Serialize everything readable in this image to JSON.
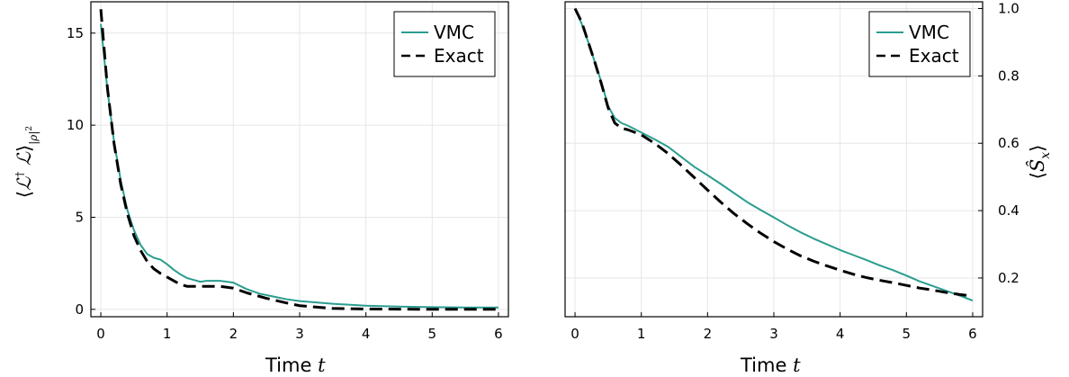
{
  "chart_data": [
    {
      "type": "line",
      "title": "",
      "xlabel": "Time t",
      "ylabel": "⟨ℒ† ℒ⟩|ρ|²",
      "xlim": [
        -0.15,
        6.15
      ],
      "ylim": [
        -0.4,
        16.7
      ],
      "xticks": [
        0,
        1,
        2,
        3,
        4,
        5,
        6
      ],
      "yticks": [
        0,
        5,
        10,
        15
      ],
      "ytick_labels": [
        "0",
        "5",
        "10",
        "15"
      ],
      "grid": true,
      "legend_position": "top-right",
      "series": [
        {
          "name": "VMC",
          "color": "#2a9d8f",
          "dash": "solid",
          "x": [
            0,
            0.1,
            0.2,
            0.3,
            0.4,
            0.5,
            0.6,
            0.7,
            0.8,
            0.9,
            1.0,
            1.1,
            1.2,
            1.3,
            1.4,
            1.5,
            1.6,
            1.8,
            2.0,
            2.2,
            2.4,
            2.6,
            2.8,
            3.0,
            3.5,
            4.0,
            4.5,
            5.0,
            5.5,
            6.0
          ],
          "y": [
            15.5,
            11.9,
            9.1,
            7.0,
            5.4,
            4.3,
            3.5,
            3.0,
            2.8,
            2.7,
            2.45,
            2.15,
            1.9,
            1.7,
            1.6,
            1.5,
            1.55,
            1.55,
            1.45,
            1.1,
            0.85,
            0.7,
            0.55,
            0.45,
            0.3,
            0.2,
            0.15,
            0.12,
            0.1,
            0.1
          ]
        },
        {
          "name": "Exact",
          "color": "#000000",
          "dash": "dashed",
          "x": [
            0,
            0.1,
            0.2,
            0.3,
            0.4,
            0.5,
            0.6,
            0.7,
            0.8,
            0.9,
            1.0,
            1.1,
            1.2,
            1.3,
            1.4,
            1.6,
            1.8,
            2.0,
            2.2,
            2.5,
            2.8,
            3.0,
            3.5,
            4.0,
            4.5,
            5.0,
            5.5,
            6.0
          ],
          "y": [
            16.3,
            12.0,
            9.0,
            6.8,
            5.2,
            4.0,
            3.2,
            2.6,
            2.2,
            1.95,
            1.75,
            1.55,
            1.35,
            1.25,
            1.25,
            1.25,
            1.25,
            1.15,
            0.9,
            0.6,
            0.35,
            0.2,
            0.05,
            0.02,
            0.01,
            0.0,
            0.0,
            0.0
          ]
        }
      ]
    },
    {
      "type": "line",
      "title": "",
      "xlabel": "Time t",
      "ylabel": "⟨Ŝx⟩",
      "xlim": [
        -0.15,
        6.15
      ],
      "ylim": [
        0.085,
        1.02
      ],
      "xticks": [
        0,
        1,
        2,
        3,
        4,
        5,
        6
      ],
      "yticks": [
        0.2,
        0.4,
        0.6,
        0.8,
        1.0
      ],
      "ytick_labels": [
        "0.2",
        "0.4",
        "0.6",
        "0.8",
        "1.0"
      ],
      "grid": true,
      "legend_position": "top-right",
      "series": [
        {
          "name": "VMC",
          "color": "#2a9d8f",
          "dash": "solid",
          "x": [
            0,
            0.1,
            0.2,
            0.3,
            0.4,
            0.5,
            0.6,
            0.7,
            0.8,
            1.0,
            1.2,
            1.4,
            1.6,
            1.8,
            2.0,
            2.2,
            2.4,
            2.6,
            2.8,
            3.0,
            3.2,
            3.4,
            3.6,
            3.8,
            4.0,
            4.2,
            4.4,
            4.6,
            4.8,
            5.0,
            5.2,
            5.4,
            5.6,
            5.8,
            6.0
          ],
          "y": [
            1.0,
            0.955,
            0.9,
            0.84,
            0.78,
            0.71,
            0.675,
            0.66,
            0.652,
            0.632,
            0.612,
            0.59,
            0.56,
            0.53,
            0.505,
            0.479,
            0.452,
            0.425,
            0.402,
            0.38,
            0.357,
            0.336,
            0.317,
            0.3,
            0.283,
            0.268,
            0.253,
            0.237,
            0.223,
            0.207,
            0.19,
            0.176,
            0.162,
            0.148,
            0.133
          ]
        },
        {
          "name": "Exact",
          "color": "#000000",
          "dash": "dashed",
          "x": [
            0,
            0.1,
            0.2,
            0.3,
            0.4,
            0.5,
            0.6,
            0.7,
            0.8,
            1.0,
            1.2,
            1.4,
            1.6,
            1.8,
            2.0,
            2.2,
            2.4,
            2.6,
            2.8,
            3.0,
            3.2,
            3.4,
            3.6,
            3.8,
            4.0,
            4.2,
            4.4,
            4.6,
            4.8,
            5.0,
            5.2,
            5.4,
            5.6,
            5.8,
            6.0
          ],
          "y": [
            1.0,
            0.96,
            0.9,
            0.84,
            0.775,
            0.705,
            0.66,
            0.645,
            0.64,
            0.625,
            0.6,
            0.57,
            0.535,
            0.498,
            0.461,
            0.425,
            0.391,
            0.361,
            0.333,
            0.308,
            0.286,
            0.266,
            0.25,
            0.236,
            0.223,
            0.211,
            0.201,
            0.193,
            0.186,
            0.178,
            0.17,
            0.164,
            0.157,
            0.151,
            0.146
          ]
        }
      ]
    }
  ]
}
